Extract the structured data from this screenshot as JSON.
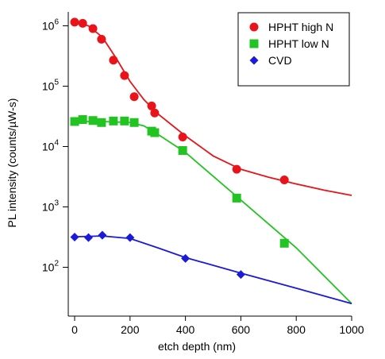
{
  "chart_data": {
    "type": "scatter",
    "xlabel": "etch depth (nm)",
    "ylabel": "PL intensity (counts/µW-s)",
    "xlim": [
      -23,
      1000
    ],
    "xticks": [
      0,
      200,
      400,
      600,
      800,
      1000
    ],
    "ylim": [
      17,
      1700000
    ],
    "yscale": "log",
    "yticks": [
      {
        "value": 100,
        "label": "10",
        "exponent": "2"
      },
      {
        "value": 1000,
        "label": "10",
        "exponent": "3"
      },
      {
        "value": 10000,
        "label": "10",
        "exponent": "4"
      },
      {
        "value": 100000,
        "label": "10",
        "exponent": "5"
      },
      {
        "value": 1000000,
        "label": "10",
        "exponent": "6"
      }
    ],
    "legend": "top-right",
    "series": [
      {
        "name": "HPHT high N",
        "color": "#e8141a",
        "marker": "circle",
        "x": [
          0,
          29,
          66,
          97,
          140,
          180,
          215,
          278,
          289,
          390,
          585,
          757
        ],
        "values": [
          1150000,
          1100000,
          900000,
          600000,
          270000,
          150000,
          67000,
          47000,
          36000,
          14400,
          4200,
          2800
        ]
      },
      {
        "name": "HPHT low N",
        "color": "#22c422",
        "marker": "square",
        "x": [
          0,
          29,
          66,
          97,
          140,
          180,
          215,
          278,
          289,
          390,
          585,
          757
        ],
        "values": [
          26000,
          28000,
          27000,
          25000,
          26500,
          26500,
          25000,
          18000,
          17000,
          8600,
          1400,
          250
        ]
      },
      {
        "name": "CVD",
        "color": "#1a1ad8",
        "marker": "diamond",
        "x": [
          0,
          50,
          100,
          200,
          400,
          600
        ],
        "values": [
          316,
          310,
          340,
          310,
          140,
          76
        ]
      }
    ],
    "fits": [
      {
        "color": "#e8141a",
        "x": [
          0,
          50,
          100,
          150,
          200,
          250,
          300,
          400,
          500,
          600,
          700,
          800,
          900,
          1000
        ],
        "values": [
          1150000,
          1000000,
          650000,
          290000,
          120000,
          60000,
          35000,
          15000,
          7000,
          4200,
          3100,
          2400,
          1900,
          1550
        ]
      },
      {
        "color": "#22c422",
        "x": [
          0,
          100,
          200,
          250,
          300,
          400,
          600,
          800,
          1000
        ],
        "values": [
          26000,
          26000,
          25000,
          22000,
          16000,
          8000,
          1300,
          210,
          25
        ]
      },
      {
        "color": "#1a1ad8",
        "x": [
          0,
          100,
          200,
          300,
          400,
          600,
          800,
          1000
        ],
        "values": [
          320,
          330,
          300,
          210,
          145,
          80,
          45,
          25
        ]
      }
    ]
  }
}
